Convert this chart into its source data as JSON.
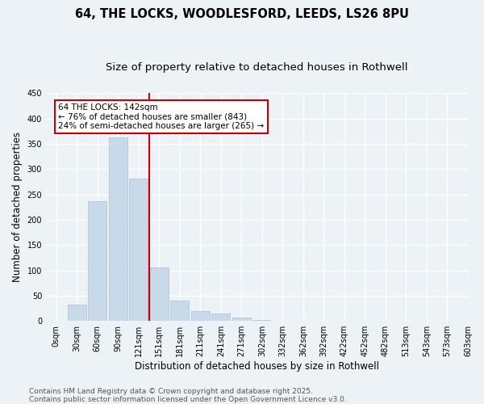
{
  "title_line1": "64, THE LOCKS, WOODLESFORD, LEEDS, LS26 8PU",
  "title_line2": "Size of property relative to detached houses in Rothwell",
  "xlabel": "Distribution of detached houses by size in Rothwell",
  "ylabel": "Number of detached properties",
  "bar_color": "#c8daea",
  "bar_edge_color": "#a8c0d6",
  "background_color": "#edf2f7",
  "grid_color": "#ffffff",
  "bins": [
    "0sqm",
    "30sqm",
    "60sqm",
    "90sqm",
    "121sqm",
    "151sqm",
    "181sqm",
    "211sqm",
    "241sqm",
    "271sqm",
    "302sqm",
    "332sqm",
    "362sqm",
    "392sqm",
    "422sqm",
    "452sqm",
    "482sqm",
    "513sqm",
    "543sqm",
    "573sqm",
    "603sqm"
  ],
  "values": [
    0,
    32,
    236,
    362,
    281,
    105,
    40,
    20,
    14,
    6,
    2,
    0,
    0,
    0,
    0,
    0,
    0,
    1,
    0,
    0
  ],
  "ylim": [
    0,
    450
  ],
  "yticks": [
    0,
    50,
    100,
    150,
    200,
    250,
    300,
    350,
    400,
    450
  ],
  "annotation_title": "64 THE LOCKS: 142sqm",
  "annotation_line1": "← 76% of detached houses are smaller (843)",
  "annotation_line2": "24% of semi-detached houses are larger (265) →",
  "annotation_box_facecolor": "#ffffff",
  "annotation_box_edgecolor": "#cc0000",
  "vline_color": "#cc0000",
  "footer_line1": "Contains HM Land Registry data © Crown copyright and database right 2025.",
  "footer_line2": "Contains public sector information licensed under the Open Government Licence v3.0.",
  "title_fontsize": 10.5,
  "subtitle_fontsize": 9.5,
  "axis_label_fontsize": 8.5,
  "tick_fontsize": 7,
  "annotation_fontsize": 7.5,
  "footer_fontsize": 6.5,
  "prop_sqm": 142,
  "bin_width": 30
}
